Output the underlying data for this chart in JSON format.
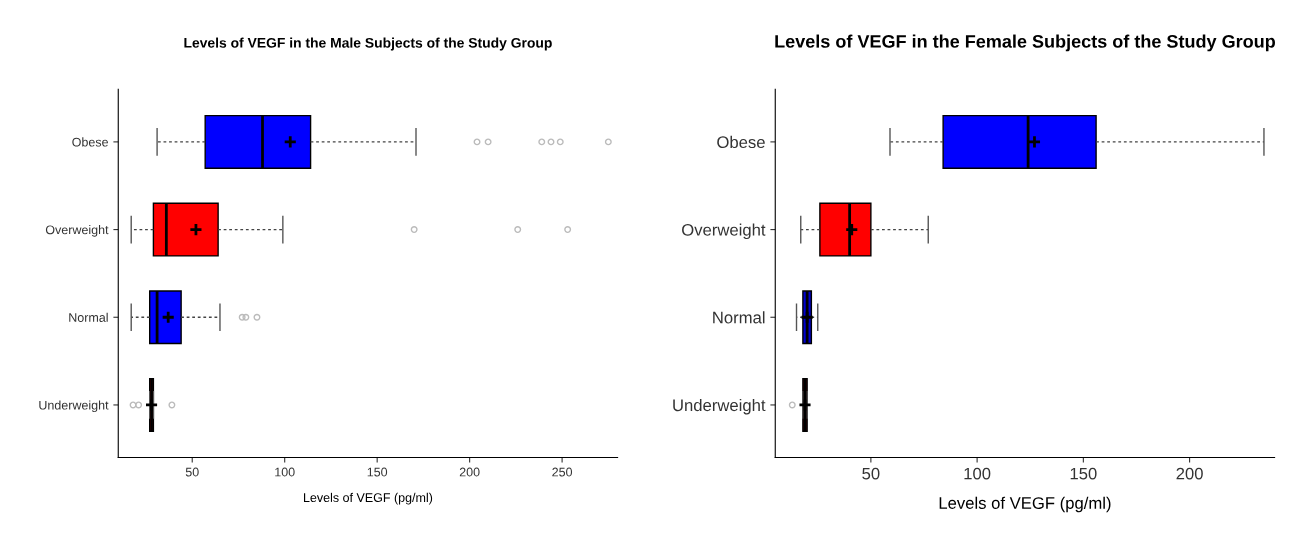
{
  "chart_data": [
    {
      "type": "box",
      "orientation": "horizontal",
      "title": "Levels of VEGF in the Male Subjects of the Study Group",
      "xlabel": "Levels of VEGF (pg/ml)",
      "categories": [
        "Obese",
        "Overweight",
        "Normal",
        "Underweight"
      ],
      "colors": [
        "#0000ff",
        "#ff0000",
        "#0000ff",
        "#ff0000"
      ],
      "boxes": [
        {
          "low": 31,
          "q1": 57,
          "median": 88,
          "q3": 114,
          "high": 171,
          "mean": 103,
          "outliers": [
            204,
            210,
            239,
            244,
            249,
            275
          ]
        },
        {
          "low": 17,
          "q1": 29,
          "median": 36,
          "q3": 64,
          "high": 99,
          "mean": 52,
          "outliers": [
            170,
            226,
            253
          ]
        },
        {
          "low": 17,
          "q1": 27,
          "median": 31,
          "q3": 44,
          "high": 65,
          "mean": 37,
          "outliers": [
            77,
            79,
            85
          ]
        },
        {
          "low": 27,
          "q1": 27,
          "median": 28,
          "q3": 29,
          "high": 29,
          "mean": 28,
          "outliers": [
            18,
            21,
            39
          ]
        }
      ],
      "xlim": [
        10,
        280
      ],
      "xticks": [
        50,
        100,
        150,
        200,
        250
      ],
      "grid": false,
      "marker": "cross"
    },
    {
      "type": "box",
      "orientation": "horizontal",
      "title": "Levels of VEGF in the Female Subjects of the Study Group",
      "xlabel": "Levels of VEGF (pg/ml)",
      "categories": [
        "Obese",
        "Overweight",
        "Normal",
        "Underweight"
      ],
      "colors": [
        "#0000ff",
        "#ff0000",
        "#0000cc",
        "#5a0a0a"
      ],
      "boxes": [
        {
          "low": 59,
          "q1": 84,
          "median": 124,
          "q3": 156,
          "high": 235,
          "mean": 127
        },
        {
          "low": 17,
          "q1": 26,
          "median": 40,
          "q3": 50,
          "high": 77,
          "mean": 41
        },
        {
          "low": 15,
          "q1": 18,
          "median": 20,
          "q3": 22,
          "high": 25,
          "mean": 20
        },
        {
          "low": 18,
          "q1": 18,
          "median": 19,
          "q3": 20,
          "high": 20,
          "mean": 19,
          "outliers": [
            13
          ]
        }
      ],
      "xlim": [
        5,
        240
      ],
      "xticks": [
        50,
        100,
        150,
        200
      ],
      "grid": false,
      "marker": "cross"
    }
  ]
}
